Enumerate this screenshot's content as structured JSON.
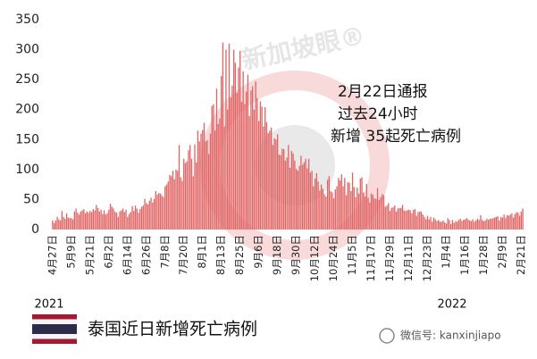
{
  "chart_data": {
    "type": "bar",
    "title": "泰国近日新增死亡病例",
    "annotation": [
      "2月22日通报",
      "过去24小时",
      "新增 35起死亡病例"
    ],
    "year_labels": [
      "2021",
      "2022"
    ],
    "watermark": "新加坡眼®",
    "wechat": "微信号: kanxinjiapo",
    "color": "#e06666",
    "ylim": [
      0,
      350
    ],
    "yticks": [
      0,
      50,
      100,
      150,
      200,
      250,
      300,
      350
    ],
    "grid": false,
    "categories": [
      "4月27日",
      null,
      null,
      null,
      null,
      null,
      null,
      null,
      null,
      null,
      null,
      null,
      "5月9日",
      null,
      null,
      null,
      null,
      null,
      null,
      null,
      null,
      null,
      null,
      null,
      "5月21日",
      null,
      null,
      null,
      null,
      null,
      null,
      null,
      null,
      null,
      null,
      null,
      "6月2日",
      null,
      null,
      null,
      null,
      null,
      null,
      null,
      null,
      null,
      null,
      null,
      "6月14日",
      null,
      null,
      null,
      null,
      null,
      null,
      null,
      null,
      null,
      null,
      null,
      "6月26日",
      null,
      null,
      null,
      null,
      null,
      null,
      null,
      null,
      null,
      null,
      null,
      "7月8日",
      null,
      null,
      null,
      null,
      null,
      null,
      null,
      null,
      null,
      null,
      null,
      "7月20日",
      null,
      null,
      null,
      null,
      null,
      null,
      null,
      null,
      null,
      null,
      null,
      "8月1日",
      null,
      null,
      null,
      null,
      null,
      null,
      null,
      null,
      null,
      null,
      null,
      "8月13日",
      null,
      null,
      null,
      null,
      null,
      null,
      null,
      null,
      null,
      null,
      null,
      "8月25日",
      null,
      null,
      null,
      null,
      null,
      null,
      null,
      null,
      null,
      null,
      null,
      "9月6日",
      null,
      null,
      null,
      null,
      null,
      null,
      null,
      null,
      null,
      null,
      null,
      "9月18日",
      null,
      null,
      null,
      null,
      null,
      null,
      null,
      null,
      null,
      null,
      null,
      "9月30日",
      null,
      null,
      null,
      null,
      null,
      null,
      null,
      null,
      null,
      null,
      null,
      "10月12日",
      null,
      null,
      null,
      null,
      null,
      null,
      null,
      null,
      null,
      null,
      null,
      "10月24日",
      null,
      null,
      null,
      null,
      null,
      null,
      null,
      null,
      null,
      null,
      null,
      "11月5日",
      null,
      null,
      null,
      null,
      null,
      null,
      null,
      null,
      null,
      null,
      null,
      "11月17日",
      null,
      null,
      null,
      null,
      null,
      null,
      null,
      null,
      null,
      null,
      null,
      "11月29日",
      null,
      null,
      null,
      null,
      null,
      null,
      null,
      null,
      null,
      null,
      null,
      "12月11日",
      null,
      null,
      null,
      null,
      null,
      null,
      null,
      null,
      null,
      null,
      null,
      "12月23日",
      null,
      null,
      null,
      null,
      null,
      null,
      null,
      null,
      null,
      null,
      null,
      "1月4日",
      null,
      null,
      null,
      null,
      null,
      null,
      null,
      null,
      null,
      null,
      null,
      "1月16日",
      null,
      null,
      null,
      null,
      null,
      null,
      null,
      null,
      null,
      null,
      null,
      "1月28日",
      null,
      null,
      null,
      null,
      null,
      null,
      null,
      null,
      null,
      null,
      null,
      "2月9日",
      null,
      null,
      null,
      null,
      null,
      null,
      null,
      null,
      null,
      null,
      null,
      "2月21日",
      null
    ],
    "values": [
      15,
      11,
      15,
      21,
      17,
      15,
      31,
      21,
      18,
      27,
      20,
      19,
      19,
      17,
      30,
      35,
      28,
      25,
      30,
      32,
      34,
      27,
      30,
      28,
      31,
      29,
      34,
      32,
      41,
      36,
      30,
      33,
      26,
      32,
      25,
      27,
      33,
      43,
      38,
      35,
      30,
      28,
      21,
      30,
      32,
      35,
      29,
      33,
      21,
      26,
      29,
      39,
      31,
      40,
      35,
      28,
      34,
      38,
      40,
      51,
      44,
      42,
      48,
      53,
      45,
      51,
      64,
      58,
      61,
      60,
      57,
      54,
      72,
      75,
      80,
      91,
      89,
      98,
      84,
      100,
      98,
      141,
      87,
      81,
      118,
      111,
      114,
      132,
      141,
      118,
      89,
      142,
      112,
      165,
      147,
      160,
      166,
      178,
      147,
      149,
      126,
      160,
      206,
      209,
      165,
      235,
      176,
      185,
      256,
      312,
      172,
      300,
      200,
      310,
      220,
      240,
      300,
      278,
      228,
      270,
      298,
      213,
      264,
      209,
      230,
      258,
      189,
      232,
      239,
      200,
      247,
      219,
      181,
      214,
      205,
      172,
      204,
      179,
      161,
      165,
      170,
      141,
      152,
      150,
      159,
      125,
      124,
      135,
      134,
      115,
      120,
      141,
      103,
      131,
      127,
      115,
      101,
      98,
      106,
      123,
      108,
      112,
      118,
      102,
      118,
      95,
      98,
      72,
      85,
      94,
      80,
      65,
      75,
      68,
      59,
      55,
      83,
      89,
      64,
      62,
      52,
      67,
      72,
      86,
      82,
      92,
      72,
      86,
      57,
      79,
      78,
      64,
      95,
      71,
      54,
      70,
      60,
      85,
      87,
      62,
      55,
      76,
      53,
      45,
      60,
      58,
      52,
      51,
      69,
      49,
      54,
      59,
      57,
      38,
      40,
      44,
      31,
      36,
      37,
      40,
      30,
      35,
      36,
      36,
      41,
      32,
      31,
      32,
      33,
      32,
      27,
      33,
      34,
      23,
      29,
      30,
      30,
      25,
      21,
      17,
      23,
      17,
      21,
      13,
      20,
      17,
      14,
      16,
      13,
      13,
      15,
      12,
      10,
      19,
      16,
      9,
      16,
      11,
      14,
      13,
      16,
      18,
      14,
      16,
      17,
      19,
      17,
      15,
      14,
      17,
      13,
      15,
      18,
      16,
      24,
      16,
      14,
      15,
      18,
      16,
      18,
      18,
      19,
      20,
      21,
      22,
      15,
      21,
      20,
      25,
      19,
      24,
      23,
      25,
      27,
      20,
      26,
      29,
      28,
      23,
      30,
      35
    ]
  }
}
